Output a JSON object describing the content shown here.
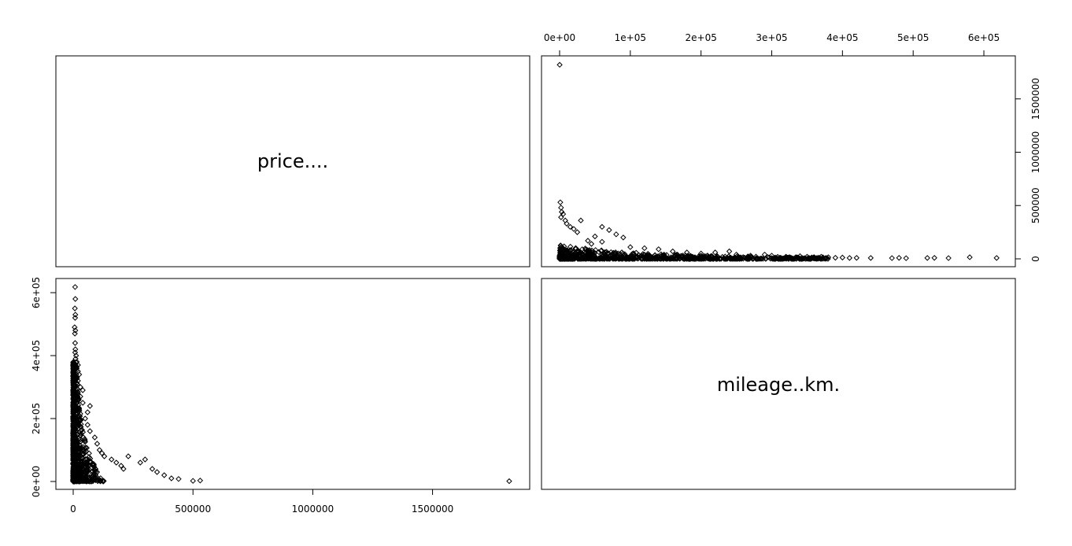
{
  "chart_data": {
    "type": "scatter",
    "variables": [
      "price....",
      "mileage..km."
    ],
    "panels": [
      {
        "position": "top-right",
        "x_variable": "mileage..km.",
        "y_variable": "price....",
        "xlim": [
          0,
          620000
        ],
        "ylim": [
          0,
          1830000
        ],
        "x_ticks": [
          0,
          100000,
          200000,
          300000,
          400000,
          500000,
          600000
        ],
        "x_tick_labels": [
          "0e+00",
          "1e+05",
          "2e+05",
          "3e+05",
          "4e+05",
          "5e+05",
          "6e+05"
        ],
        "y_ticks": [
          0,
          500000,
          1000000,
          1500000
        ],
        "y_tick_labels": [
          "0",
          "500000",
          "1000000",
          "1500000"
        ],
        "x_axis_side": "top",
        "y_axis_side": "right",
        "points": [
          [
            100,
            1820000
          ],
          [
            1000,
            530000
          ],
          [
            2000,
            480000
          ],
          [
            3000,
            440000
          ],
          [
            5000,
            420000
          ],
          [
            2000,
            390000
          ],
          [
            8000,
            360000
          ],
          [
            10000,
            330000
          ],
          [
            15000,
            300000
          ],
          [
            20000,
            280000
          ],
          [
            30000,
            360000
          ],
          [
            60000,
            300000
          ],
          [
            70000,
            270000
          ],
          [
            50000,
            210000
          ],
          [
            80000,
            230000
          ],
          [
            90000,
            200000
          ],
          [
            25000,
            250000
          ],
          [
            40000,
            170000
          ],
          [
            45000,
            140000
          ],
          [
            60000,
            160000
          ],
          [
            100000,
            110000
          ],
          [
            120000,
            100000
          ],
          [
            140000,
            90000
          ],
          [
            160000,
            70000
          ],
          [
            180000,
            60000
          ],
          [
            200000,
            50000
          ],
          [
            220000,
            60000
          ],
          [
            240000,
            70000
          ],
          [
            250000,
            40000
          ],
          [
            270000,
            30000
          ],
          [
            290000,
            40000
          ],
          [
            300000,
            30000
          ],
          [
            320000,
            20000
          ],
          [
            340000,
            25000
          ],
          [
            350000,
            20000
          ],
          [
            360000,
            15000
          ],
          [
            370000,
            20000
          ],
          [
            380000,
            15000
          ],
          [
            390000,
            10000
          ],
          [
            400000,
            12000
          ],
          [
            410000,
            8000
          ],
          [
            420000,
            9000
          ],
          [
            440000,
            8000
          ],
          [
            470000,
            7000
          ],
          [
            480000,
            9000
          ],
          [
            490000,
            6000
          ],
          [
            520000,
            8000
          ],
          [
            530000,
            9000
          ],
          [
            550000,
            7000
          ],
          [
            580000,
            15000
          ],
          [
            618000,
            8000
          ]
        ]
      },
      {
        "position": "bottom-left",
        "x_variable": "price....",
        "y_variable": "mileage..km.",
        "xlim": [
          0,
          1830000
        ],
        "ylim": [
          0,
          620000
        ],
        "x_ticks": [
          0,
          500000,
          1000000,
          1500000
        ],
        "x_tick_labels": [
          "0",
          "500000",
          "1000000",
          "1500000"
        ],
        "y_ticks": [
          0,
          200000,
          400000,
          600000
        ],
        "y_tick_labels": [
          "0e+00",
          "2e+05",
          "4e+05",
          "6e+05"
        ],
        "x_axis_side": "bottom",
        "y_axis_side": "left",
        "points": [
          [
            8000,
            618000
          ],
          [
            9000,
            580000
          ],
          [
            7000,
            550000
          ],
          [
            9000,
            530000
          ],
          [
            8000,
            520000
          ],
          [
            6000,
            490000
          ],
          [
            9000,
            480000
          ],
          [
            7000,
            470000
          ],
          [
            8000,
            440000
          ],
          [
            9000,
            420000
          ],
          [
            8000,
            410000
          ],
          [
            12000,
            400000
          ],
          [
            10000,
            390000
          ],
          [
            15000,
            380000
          ],
          [
            20000,
            370000
          ],
          [
            15000,
            360000
          ],
          [
            20000,
            350000
          ],
          [
            25000,
            340000
          ],
          [
            20000,
            320000
          ],
          [
            30000,
            300000
          ],
          [
            40000,
            290000
          ],
          [
            30000,
            270000
          ],
          [
            40000,
            250000
          ],
          [
            70000,
            240000
          ],
          [
            60000,
            220000
          ],
          [
            50000,
            200000
          ],
          [
            60000,
            180000
          ],
          [
            70000,
            160000
          ],
          [
            90000,
            140000
          ],
          [
            100000,
            120000
          ],
          [
            110000,
            100000
          ],
          [
            120000,
            90000
          ],
          [
            130000,
            80000
          ],
          [
            160000,
            70000
          ],
          [
            180000,
            60000
          ],
          [
            200000,
            50000
          ],
          [
            210000,
            40000
          ],
          [
            230000,
            80000
          ],
          [
            280000,
            60000
          ],
          [
            300000,
            70000
          ],
          [
            330000,
            40000
          ],
          [
            350000,
            30000
          ],
          [
            380000,
            20000
          ],
          [
            410000,
            10000
          ],
          [
            440000,
            8000
          ],
          [
            500000,
            2000
          ],
          [
            530000,
            3000
          ],
          [
            1820000,
            1000
          ]
        ]
      }
    ],
    "diagonal_labels": [
      "price....",
      "mileage..km."
    ]
  }
}
